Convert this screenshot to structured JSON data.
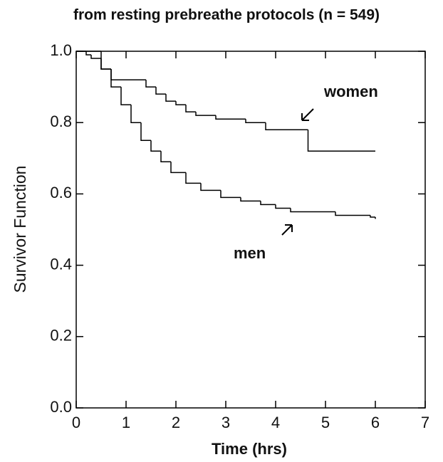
{
  "chart_data": {
    "type": "step",
    "title": "from resting prebreathe protocols (n = 549)",
    "xlabel": "Time (hrs)",
    "ylabel": "Survivor Function",
    "xlim": [
      0,
      7
    ],
    "xticks": [
      0,
      1,
      2,
      3,
      4,
      5,
      6,
      7
    ],
    "ylim": [
      0,
      1
    ],
    "yticks": [
      {
        "value": 0,
        "label": "0.0"
      },
      0.2,
      0.4,
      0.6,
      0.8,
      {
        "value": 1,
        "label": "1.0"
      }
    ],
    "series": [
      {
        "name": "women",
        "color": "#000000",
        "x": [
          0,
          0.5,
          0.7,
          1.4,
          1.6,
          1.8,
          2.0,
          2.2,
          2.4,
          2.8,
          3.4,
          3.8,
          4.65,
          6.0
        ],
        "values": [
          1.0,
          0.95,
          0.92,
          0.9,
          0.88,
          0.86,
          0.85,
          0.83,
          0.82,
          0.81,
          0.8,
          0.78,
          0.72,
          0.72
        ]
      },
      {
        "name": "men",
        "color": "#000000",
        "x": [
          0,
          0.2,
          0.3,
          0.5,
          0.7,
          0.9,
          1.1,
          1.3,
          1.5,
          1.7,
          1.9,
          2.2,
          2.5,
          2.9,
          3.3,
          3.7,
          4.0,
          4.3,
          5.2,
          5.9,
          6.0
        ],
        "values": [
          1.0,
          0.99,
          0.98,
          0.95,
          0.9,
          0.85,
          0.8,
          0.75,
          0.72,
          0.69,
          0.66,
          0.63,
          0.61,
          0.59,
          0.58,
          0.57,
          0.56,
          0.55,
          0.54,
          0.535,
          0.53
        ]
      }
    ]
  }
}
